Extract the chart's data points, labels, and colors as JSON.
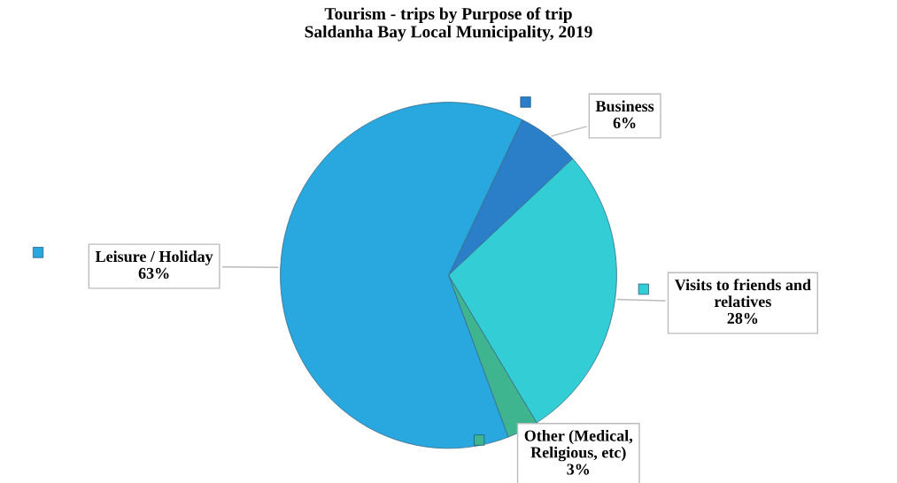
{
  "chart_data": {
    "type": "pie",
    "title": "Tourism - trips by Purpose of trip\nSaldanha Bay Local Municipality, 2019",
    "categories": [
      "Business",
      "Visits to friends and\nrelatives",
      "Other (Medical,\nReligious, etc)",
      "Leisure / Holiday"
    ],
    "values": [
      6,
      28,
      3,
      63
    ],
    "colors": [
      "#2a7fc8",
      "#33cdd6",
      "#3fb58f",
      "#29a8e0"
    ],
    "value_labels": [
      "6%",
      "28%",
      "3%",
      "63%"
    ]
  }
}
